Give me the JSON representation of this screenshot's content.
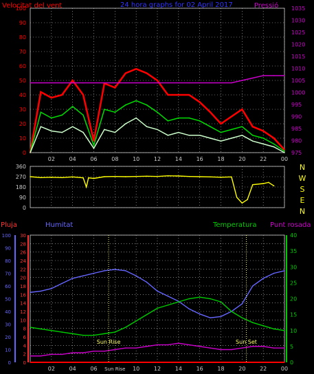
{
  "header": {
    "wind_label": "Velocitat del vent",
    "title": "24 hora graphs for 02 April 2017",
    "pressure_label": "Pressió"
  },
  "colors": {
    "background": "#000000",
    "grid": "#cccccc",
    "wind_gust": "#ff0000",
    "wind_avg": "#00dd00",
    "wind_speed": "#ccffcc",
    "pressure": "#cc00cc",
    "direction": "#ffff00",
    "rain": "#ff0000",
    "humidity": "#6666ff",
    "temperature": "#00cc00",
    "dewpoint": "#cc00cc",
    "sun_marker": "#ffff66"
  },
  "x_ticks": [
    "02",
    "04",
    "06",
    "08",
    "10",
    "12",
    "14",
    "16",
    "18",
    "20",
    "22",
    "00"
  ],
  "chart_data": [
    {
      "type": "line",
      "id": "wind",
      "ylabel": "Velocitat del vent",
      "ylim": [
        0,
        100
      ],
      "yticks": [
        "100",
        "90",
        "80",
        "70",
        "60",
        "50",
        "40",
        "30",
        "20",
        "10",
        "0"
      ],
      "y2label": "Pressió",
      "y2lim": [
        975,
        1035
      ],
      "y2ticks": [
        "1035",
        "1030",
        "1025",
        "1020",
        "1015",
        "1010",
        "1005",
        "1000",
        "995",
        "990",
        "985",
        "980",
        "975"
      ],
      "grid": true,
      "x": [
        0,
        1,
        2,
        3,
        4,
        5,
        6,
        7,
        8,
        9,
        10,
        11,
        12,
        13,
        14,
        15,
        16,
        17,
        18,
        19,
        20,
        21,
        22,
        23,
        24
      ],
      "series": [
        {
          "key": "gust",
          "axis": "left",
          "values": [
            0,
            42,
            38,
            40,
            50,
            40,
            8,
            48,
            45,
            55,
            58,
            55,
            50,
            40,
            40,
            40,
            35,
            28,
            20,
            25,
            30,
            18,
            15,
            10,
            2
          ]
        },
        {
          "key": "average",
          "axis": "left",
          "values": [
            0,
            28,
            24,
            26,
            32,
            26,
            5,
            30,
            28,
            33,
            36,
            33,
            28,
            22,
            24,
            24,
            22,
            18,
            14,
            16,
            18,
            12,
            10,
            6,
            1
          ]
        },
        {
          "key": "speed",
          "axis": "left",
          "values": [
            0,
            18,
            15,
            14,
            18,
            14,
            3,
            16,
            14,
            20,
            24,
            18,
            16,
            12,
            14,
            12,
            12,
            10,
            8,
            10,
            12,
            8,
            6,
            4,
            0
          ]
        },
        {
          "key": "pressure",
          "axis": "right",
          "values": [
            1004,
            1004,
            1004,
            1004,
            1004,
            1004,
            1004,
            1004,
            1004,
            1004,
            1004,
            1004,
            1004,
            1004,
            1004,
            1004,
            1004,
            1004,
            1004,
            1004,
            1005,
            1006,
            1007,
            1007,
            1007
          ]
        }
      ]
    },
    {
      "type": "line",
      "id": "direction",
      "ylim": [
        0,
        360
      ],
      "yticks": [
        "360",
        "270",
        "180",
        "90",
        "0"
      ],
      "compass": [
        "N",
        "W",
        "S",
        "E",
        "N"
      ],
      "grid": true,
      "x": [
        0,
        1,
        2,
        3,
        4,
        5,
        5.3,
        5.5,
        6,
        7,
        8,
        9,
        10,
        11,
        12,
        13,
        14,
        15,
        16,
        17,
        18,
        19,
        19.5,
        20,
        20.5,
        21,
        22,
        22.5,
        23
      ],
      "values": [
        270,
        262,
        265,
        262,
        268,
        260,
        180,
        260,
        255,
        270,
        272,
        270,
        272,
        274,
        272,
        278,
        276,
        272,
        270,
        268,
        265,
        268,
        90,
        40,
        70,
        200,
        210,
        220,
        190
      ]
    },
    {
      "type": "line",
      "id": "climate",
      "left_axes": [
        {
          "label": "Pluja",
          "ylim": [
            0,
            30
          ],
          "yticks": [
            "30",
            "28",
            "26",
            "24",
            "22",
            "20",
            "18",
            "16",
            "14",
            "12",
            "10",
            "8",
            "6",
            "4",
            "2",
            "0"
          ]
        },
        {
          "label": "Humitat",
          "ylim": [
            0,
            100
          ],
          "yticks": [
            "100",
            "90",
            "80",
            "70",
            "60",
            "50",
            "40",
            "30",
            "20",
            "10",
            "0"
          ]
        }
      ],
      "right_axes": [
        {
          "label": "Temperatura",
          "ylim": [
            0,
            40
          ],
          "yticks": [
            "40",
            "35",
            "30",
            "25",
            "20",
            "15",
            "10",
            "5",
            "0"
          ]
        },
        {
          "label": "Punt rosada"
        }
      ],
      "grid": true,
      "x": [
        0,
        1,
        2,
        3,
        4,
        5,
        6,
        7,
        8,
        9,
        10,
        11,
        12,
        13,
        14,
        15,
        16,
        17,
        18,
        19,
        20,
        21,
        22,
        23,
        24
      ],
      "series": [
        {
          "key": "humidity",
          "axis": "humidity",
          "values": [
            55,
            56,
            58,
            62,
            66,
            68,
            70,
            72,
            73,
            72,
            68,
            63,
            56,
            52,
            48,
            42,
            38,
            35,
            36,
            40,
            46,
            60,
            66,
            70,
            72
          ]
        },
        {
          "key": "temperature",
          "axis": "temperature",
          "values": [
            11,
            10.5,
            10,
            9.5,
            9,
            8.5,
            8.5,
            9,
            9.5,
            11,
            13,
            15,
            17,
            18,
            19,
            20,
            20.5,
            20,
            19,
            16,
            14,
            12.5,
            11.5,
            10.5,
            10
          ]
        },
        {
          "key": "dewpoint",
          "axis": "temperature",
          "values": [
            2,
            2,
            2.5,
            2.5,
            3,
            3,
            3.5,
            3.5,
            4,
            4.5,
            4.5,
            5,
            5.5,
            5.5,
            6,
            5.5,
            5,
            4.5,
            4,
            4,
            4.5,
            5,
            5,
            4.5,
            4.5
          ]
        },
        {
          "key": "rain",
          "axis": "rain",
          "values": [
            0,
            0,
            0,
            0,
            0,
            0,
            0,
            0,
            0,
            0,
            0,
            0,
            0,
            0,
            0,
            0,
            0,
            0,
            0,
            0,
            0,
            0,
            0,
            0,
            0
          ]
        }
      ],
      "annotations": {
        "sunrise_label": "Sun Rise",
        "sunset_label": "Sun Set",
        "sunrise_tick": "Sun Rise",
        "sunrise_x": 7.4,
        "sunset_x": 20.4
      },
      "x_tick_labels": [
        "02",
        "04",
        "06",
        "Sun Rise",
        "10",
        "12",
        "14",
        "16",
        "18",
        "20",
        "22",
        "00"
      ]
    }
  ]
}
